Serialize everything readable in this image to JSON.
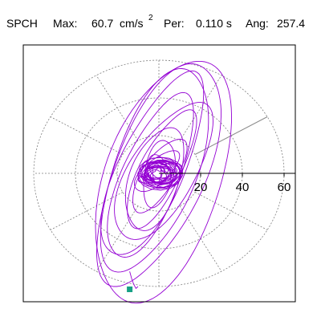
{
  "header": {
    "station": "SPCH",
    "max_label": "Max:",
    "max_value": "60.7",
    "unit_base": "cm/s",
    "unit_exp": "2",
    "per_label": "Per:",
    "per_value": "0.110 s",
    "ang_label": "Ang:",
    "ang_value": "257.4"
  },
  "chart_data": {
    "type": "polar-particle-motion",
    "title": "",
    "radial_ticks": [
      20,
      40,
      60
    ],
    "radial_tick_labels": [
      "20",
      "40",
      "60"
    ],
    "rlim": [
      0,
      65
    ],
    "angle_spokes_deg": [
      0,
      30,
      60,
      90,
      120,
      150,
      180,
      210,
      240,
      270,
      300,
      330
    ],
    "grid": true,
    "max_amplitude": 60.7,
    "max_direction_deg": 257.4,
    "colors": {
      "trace": "#9400D3",
      "marker": "#16A085",
      "grid": "#7f7f7f",
      "axis": "#000000"
    },
    "ellipses": [
      {
        "major": 62,
        "minor": 22,
        "tilt_deg": 70,
        "dx": 0,
        "dy": 0
      },
      {
        "major": 56,
        "minor": 20,
        "tilt_deg": 72,
        "dx": -2,
        "dy": 2
      },
      {
        "major": 52,
        "minor": 16,
        "tilt_deg": 68,
        "dx": -3,
        "dy": 4
      },
      {
        "major": 46,
        "minor": 14,
        "tilt_deg": 70,
        "dx": -4,
        "dy": -2
      },
      {
        "major": 40,
        "minor": 16,
        "tilt_deg": 62,
        "dx": 2,
        "dy": 1
      },
      {
        "major": 34,
        "minor": 10,
        "tilt_deg": 66,
        "dx": 1,
        "dy": 2
      },
      {
        "major": 28,
        "minor": 12,
        "tilt_deg": 74,
        "dx": -2,
        "dy": -3
      },
      {
        "major": 22,
        "minor": 8,
        "tilt_deg": 60,
        "dx": 0,
        "dy": -1
      },
      {
        "major": 18,
        "minor": 7,
        "tilt_deg": 80,
        "dx": 0,
        "dy": 0
      },
      {
        "major": 14,
        "minor": 6,
        "tilt_deg": 45,
        "dx": -1,
        "dy": 1
      },
      {
        "major": 11,
        "minor": 4,
        "tilt_deg": 20,
        "dx": 1,
        "dy": 0
      },
      {
        "major": 9,
        "minor": 5,
        "tilt_deg": 110,
        "dx": 0,
        "dy": 1
      },
      {
        "major": 7,
        "minor": 3,
        "tilt_deg": 0,
        "dx": 0,
        "dy": 0
      },
      {
        "major": 6,
        "minor": 4,
        "tilt_deg": 140,
        "dx": 1,
        "dy": 1
      },
      {
        "major": 5,
        "minor": 2,
        "tilt_deg": 90,
        "dx": -1,
        "dy": 0
      }
    ],
    "outer_loop": {
      "major": 66,
      "minor": 28,
      "tilt_deg": 74,
      "dx": 2,
      "dy": -4
    },
    "tail": [
      [
        -14,
        -52
      ],
      [
        -13,
        -56
      ],
      [
        -12,
        -59
      ],
      [
        -11,
        -61
      ],
      [
        -10,
        -60
      ]
    ],
    "marker_point": [
      -14,
      -61.5
    ]
  }
}
